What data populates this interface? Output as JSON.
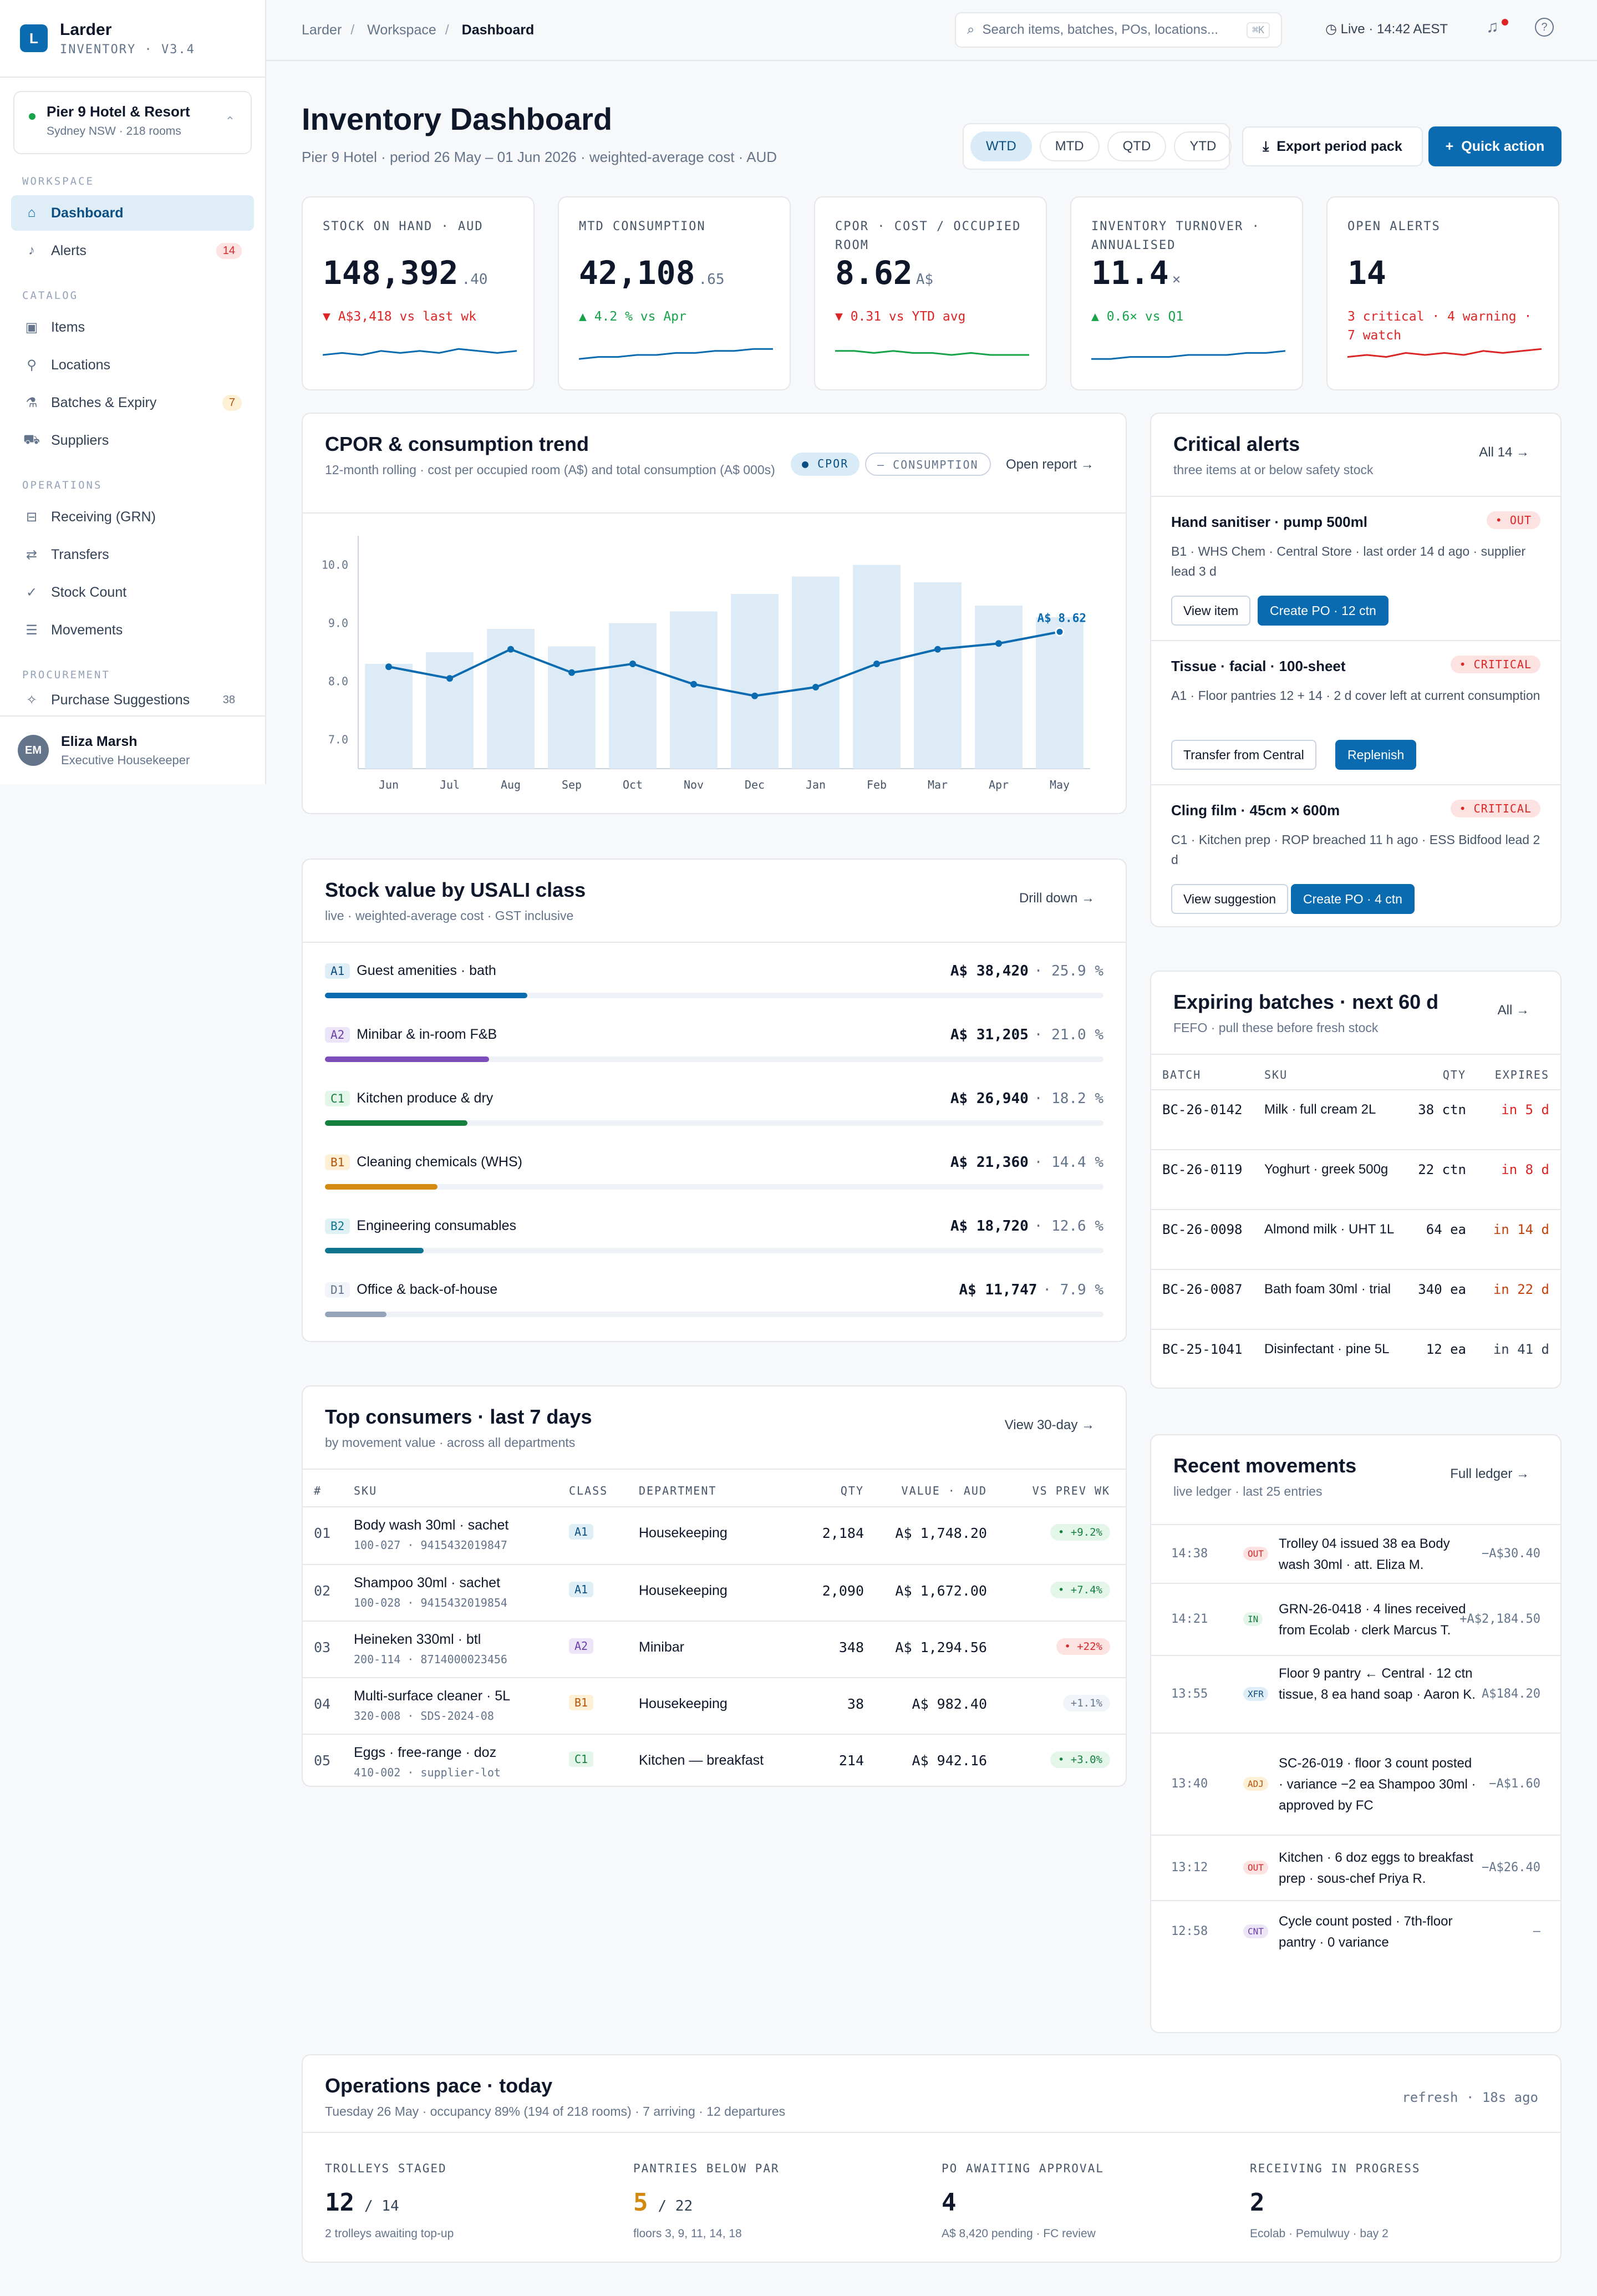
{
  "app": {
    "name": "Larder",
    "version": "INVENTORY · V3.4",
    "logo_letter": "L"
  },
  "hotel": {
    "name": "Pier 9 Hotel & Resort",
    "sub": "Sydney NSW · 218 rooms"
  },
  "nav": {
    "sections": [
      {
        "title": "WORKSPACE",
        "items": [
          {
            "label": "Dashboard",
            "icon": "home-icon",
            "active": true
          },
          {
            "label": "Alerts",
            "icon": "bell-icon",
            "badge": "14"
          }
        ]
      },
      {
        "title": "CATALOG",
        "items": [
          {
            "label": "Items",
            "icon": "box-icon"
          },
          {
            "label": "Locations",
            "icon": "location-icon"
          },
          {
            "label": "Batches & Expiry",
            "icon": "flask-icon",
            "badge": "7"
          },
          {
            "label": "Suppliers",
            "icon": "truck-icon"
          }
        ]
      },
      {
        "title": "OPERATIONS",
        "items": [
          {
            "label": "Receiving (GRN)",
            "icon": "inbox-icon"
          },
          {
            "label": "Transfers",
            "icon": "transfer-icon"
          },
          {
            "label": "Stock Count",
            "icon": "check-icon"
          },
          {
            "label": "Movements",
            "icon": "list-icon"
          }
        ]
      },
      {
        "title": "PROCUREMENT",
        "items": [
          {
            "label": "Purchase Suggestions",
            "icon": "sparkle-icon",
            "badge": "38"
          }
        ]
      }
    ]
  },
  "user": {
    "initials": "EM",
    "name": "Eliza Marsh",
    "role": "Executive Housekeeper"
  },
  "topbar": {
    "crumbs": [
      "Larder",
      "Workspace",
      "Dashboard"
    ],
    "search_placeholder": "Search items, batches, POs, locations...",
    "kbd": "⌘K",
    "live": "Live · 14:42 AEST"
  },
  "header": {
    "title": "Inventory Dashboard",
    "subtitle": "Pier 9 Hotel · period 26 May – 01 Jun 2026 · weighted-average cost · AUD",
    "periods": [
      "WTD",
      "MTD",
      "QTD",
      "YTD"
    ],
    "active_period": "WTD",
    "export_label": "Export period pack",
    "quick_label": "Quick action"
  },
  "kpis": [
    {
      "label": "STOCK ON HAND · AUD",
      "value": "148,392",
      "suffix": ".40",
      "delta": "▼ A$3,418 vs last wk",
      "trend": "down",
      "color": "#0b6bb1",
      "spark": [
        5,
        6,
        5,
        7,
        6,
        7,
        6,
        8,
        7,
        6,
        7
      ]
    },
    {
      "label": "MTD CONSUMPTION",
      "value": "42,108",
      "suffix": ".65",
      "delta": "▲ 4.2 % vs Apr",
      "trend": "up",
      "color": "#0b6bb1",
      "spark": [
        3,
        4,
        4,
        5,
        5,
        6,
        6,
        7,
        7,
        8,
        8
      ]
    },
    {
      "label": "CPOR · COST / OCCUPIED ROOM",
      "value": "8.62",
      "suffix": "A$",
      "delta": "▼ 0.31 vs YTD avg",
      "trend": "down",
      "color": "#16a34a",
      "spark": [
        7,
        7,
        6,
        7,
        6,
        6,
        5,
        6,
        5,
        5,
        5
      ]
    },
    {
      "label": "INVENTORY TURNOVER · ANNUALISED",
      "value": "11.4",
      "suffix": "×",
      "delta": "▲ 0.6× vs Q1",
      "trend": "up",
      "color": "#0b6bb1",
      "spark": [
        3,
        3,
        4,
        4,
        4,
        5,
        5,
        5,
        6,
        6,
        7
      ]
    },
    {
      "label": "OPEN ALERTS",
      "value": "14",
      "suffix": "",
      "delta": "3 critical · 4 warning · 7 watch",
      "trend": "down",
      "color": "#dc2626",
      "spark": [
        4,
        5,
        4,
        6,
        5,
        6,
        5,
        7,
        6,
        7,
        8
      ]
    }
  ],
  "cpor": {
    "title": "CPOR & consumption trend",
    "subtitle": "12-month rolling · cost per occupied room (A$) and total consumption (A$ 000s)",
    "legend": [
      "CPOR",
      "CONSUMPTION"
    ],
    "link": "Open report →"
  },
  "chart_data": {
    "type": "bar",
    "categories": [
      "Jun",
      "Jul",
      "Aug",
      "Sep",
      "Oct",
      "Nov",
      "Dec",
      "Jan",
      "Feb",
      "Mar",
      "Apr",
      "May"
    ],
    "series": [
      {
        "name": "CONSUMPTION",
        "type": "bar",
        "values": [
          8.3,
          8.5,
          8.9,
          8.6,
          9.0,
          9.2,
          9.5,
          9.8,
          10.0,
          9.7,
          9.3,
          9.1
        ]
      },
      {
        "name": "CPOR",
        "type": "line",
        "values": [
          8.25,
          8.05,
          8.55,
          8.15,
          8.3,
          7.95,
          7.75,
          7.9,
          8.3,
          8.55,
          8.65,
          8.85
        ]
      }
    ],
    "yticks": [
      "10.0",
      "9.0",
      "8.0",
      "7.0"
    ],
    "ylim": [
      6.5,
      10.5
    ],
    "annotation": "A$ 8.62"
  },
  "stock_value": {
    "title": "Stock value by USALI class",
    "subtitle": "live · weighted-average cost · GST inclusive",
    "link": "Drill down →",
    "rows": [
      {
        "tag": "A1",
        "label": "Guest amenities · bath",
        "amount": "A$ 38,420",
        "pct": "· 25.9 %",
        "share": 0.259,
        "color": "#0b6bb1",
        "tagbg": "#deedf6",
        "tagfg": "#0b4f82"
      },
      {
        "tag": "A2",
        "label": "Minibar & in-room F&B",
        "amount": "A$ 31,205",
        "pct": "· 21.0 %",
        "share": 0.21,
        "color": "#7c4dbb",
        "tagbg": "#ece4f7",
        "tagfg": "#6b3fa8"
      },
      {
        "tag": "C1",
        "label": "Kitchen produce & dry",
        "amount": "A$ 26,940",
        "pct": "· 18.2 %",
        "share": 0.182,
        "color": "#15803d",
        "tagbg": "#e4f5ea",
        "tagfg": "#15803d"
      },
      {
        "tag": "B1",
        "label": "Cleaning chemicals (WHS)",
        "amount": "A$ 21,360",
        "pct": "· 14.4 %",
        "share": 0.144,
        "color": "#d28a0e",
        "tagbg": "#fdf0d5",
        "tagfg": "#b45309"
      },
      {
        "tag": "B2",
        "label": "Engineering consumables",
        "amount": "A$ 18,720",
        "pct": "· 12.6 %",
        "share": 0.126,
        "color": "#0e7490",
        "tagbg": "#dff1f4",
        "tagfg": "#0e7490"
      },
      {
        "tag": "D1",
        "label": "Office & back-of-house",
        "amount": "A$ 11,747",
        "pct": "· 7.9 %",
        "share": 0.079,
        "color": "#94a3b8",
        "tagbg": "#f1f5f9",
        "tagfg": "#64748b"
      }
    ]
  },
  "top": {
    "title": "Top consumers · last 7 days",
    "subtitle": "by movement value · across all departments",
    "link": "View 30-day →",
    "headers": [
      "#",
      "SKU",
      "CLASS",
      "DEPARTMENT",
      "QTY",
      "VALUE · AUD",
      "VS PREV WK"
    ],
    "rows": [
      {
        "n": "01",
        "sku": "Body wash 30ml · sachet",
        "code": "100-027 · 9415432019847",
        "cls": "A1",
        "dept": "Housekeeping",
        "qty": "2,184",
        "value": "A$ 1,748.20",
        "vs": "• +9.2%",
        "vk": "g"
      },
      {
        "n": "02",
        "sku": "Shampoo 30ml · sachet",
        "code": "100-028 · 9415432019854",
        "cls": "A1",
        "dept": "Housekeeping",
        "qty": "2,090",
        "value": "A$ 1,672.00",
        "vs": "• +7.4%",
        "vk": "g"
      },
      {
        "n": "03",
        "sku": "Heineken 330ml · btl",
        "code": "200-114 · 8714000023456",
        "cls": "A2",
        "dept": "Minibar",
        "qty": "348",
        "value": "A$ 1,294.56",
        "vs": "• +22%",
        "vk": "r"
      },
      {
        "n": "04",
        "sku": "Multi-surface cleaner · 5L",
        "code": "320-008 · SDS-2024-08",
        "cls": "B1",
        "dept": "Housekeeping",
        "qty": "38",
        "value": "A$ 982.40",
        "vs": "+1.1%",
        "vk": "n"
      },
      {
        "n": "05",
        "sku": "Eggs · free-range · doz",
        "code": "410-002 · supplier-lot",
        "cls": "C1",
        "dept": "Kitchen — breakfast",
        "qty": "214",
        "value": "A$ 942.16",
        "vs": "• +3.0%",
        "vk": "g"
      }
    ]
  },
  "alerts": {
    "title": "Critical alerts",
    "subtitle": "three items at or below safety stock",
    "link": "All 14 →",
    "items": [
      {
        "title": "Hand sanitiser · pump 500ml",
        "badge": "• OUT",
        "desc": "B1 · WHS Chem · Central Store · last order 14 d ago · supplier lead 3 d",
        "b1": "View item",
        "b2": "Create PO · 12 ctn"
      },
      {
        "title": "Tissue · facial · 100-sheet",
        "badge": "• CRITICAL",
        "desc": "A1 · Floor pantries 12 + 14 · 2 d cover left at current consumption",
        "b1": "Transfer from Central",
        "b2": "Replenish"
      },
      {
        "title": "Cling film · 45cm × 600m",
        "badge": "• CRITICAL",
        "desc": "C1 · Kitchen prep · ROP breached 11 h ago · ESS Bidfood lead 2 d",
        "b1": "View suggestion",
        "b2": "Create PO · 4 ctn"
      }
    ]
  },
  "expiring": {
    "title": "Expiring batches · next 60 d",
    "subtitle": "FEFO · pull these before fresh stock",
    "link": "All →",
    "headers": [
      "BATCH",
      "SKU",
      "QTY",
      "EXPIRES"
    ],
    "rows": [
      {
        "batch": "BC-26-0142",
        "sku": "Milk · full cream 2L",
        "qty": "38 ctn",
        "exp": "in 5 d",
        "level": "red"
      },
      {
        "batch": "BC-26-0119",
        "sku": "Yoghurt · greek 500g",
        "qty": "22 ctn",
        "exp": "in 8 d",
        "level": "red"
      },
      {
        "batch": "BC-26-0098",
        "sku": "Almond milk · UHT 1L",
        "qty": "64 ea",
        "exp": "in 14 d",
        "level": "amber"
      },
      {
        "batch": "BC-26-0087",
        "sku": "Bath foam 30ml · trial",
        "qty": "340 ea",
        "exp": "in 22 d",
        "level": "amber"
      },
      {
        "batch": "BC-25-1041",
        "sku": "Disinfectant · pine 5L",
        "qty": "12 ea",
        "exp": "in 41 d",
        "level": "neutral"
      }
    ]
  },
  "movements": {
    "title": "Recent movements",
    "subtitle": "live ledger · last 25 entries",
    "link": "Full ledger →",
    "rows": [
      {
        "time": "14:38",
        "tag": "OUT",
        "text": "Trolley 04 issued 38 ea Body wash 30ml · att. Eliza M.",
        "amt": "−A$30.40"
      },
      {
        "time": "14:21",
        "tag": "IN",
        "text": "GRN-26-0418 · 4 lines received from Ecolab · clerk Marcus T.",
        "amt": "+A$2,184.50"
      },
      {
        "time": "13:55",
        "tag": "XFR",
        "text": "Floor 9 pantry ← Central · 12 ctn tissue, 8 ea hand soap · Aaron K.",
        "amt": "A$184.20"
      },
      {
        "time": "13:40",
        "tag": "ADJ",
        "text": "SC-26-019 · floor 3 count posted · variance −2 ea Shampoo 30ml · approved by FC",
        "amt": "−A$1.60"
      },
      {
        "time": "13:12",
        "tag": "OUT",
        "text": "Kitchen · 6 doz eggs to breakfast prep · sous-chef Priya R.",
        "amt": "−A$26.40"
      },
      {
        "time": "12:58",
        "tag": "CNT",
        "text": "Cycle count posted · 7th-floor pantry · 0 variance",
        "amt": "—"
      }
    ]
  },
  "ops": {
    "title": "Operations pace · today",
    "subtitle": "Tuesday 26 May · occupancy 89% (194 of 218 rooms) · 7 arriving · 12 departures",
    "refresh": "refresh · 18s ago",
    "metrics": [
      {
        "label": "TROLLEYS STAGED",
        "value": "12",
        "of": "/ 14",
        "sub": "2 trolleys awaiting top-up",
        "color": "#0f172a"
      },
      {
        "label": "PANTRIES BELOW PAR",
        "value": "5",
        "of": "/ 22",
        "sub": "floors 3, 9, 11, 14, 18",
        "color": "#d28a0e"
      },
      {
        "label": "PO AWAITING APPROVAL",
        "value": "4",
        "of": "",
        "sub": "A$ 8,420 pending · FC review",
        "color": "#0f172a"
      },
      {
        "label": "RECEIVING IN PROGRESS",
        "value": "2",
        "of": "",
        "sub": "Ecolab · Pemulwuy · bay 2",
        "color": "#0f172a"
      }
    ]
  }
}
